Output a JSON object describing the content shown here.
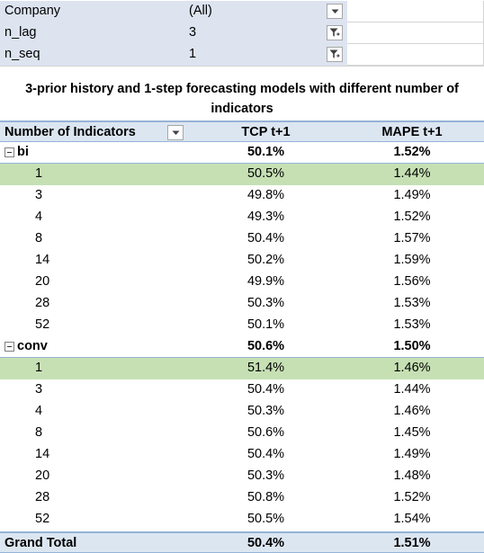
{
  "filters": [
    {
      "label": "Company",
      "value": "(All)",
      "icon": "dropdown-arrow-icon"
    },
    {
      "label": "n_lag",
      "value": "3",
      "icon": "filter-applied-icon"
    },
    {
      "label": "n_seq",
      "value": "1",
      "icon": "filter-applied-icon"
    }
  ],
  "title": "3-prior history and 1-step forecasting models with different number of indicators",
  "header": {
    "col0": "Number of Indicators",
    "col1": "TCP t+1",
    "col2": "MAPE t+1"
  },
  "groups": [
    {
      "name": "bi",
      "tcp": "50.1%",
      "mape": "1.52%",
      "rows": [
        {
          "n": "1",
          "tcp": "50.5%",
          "mape": "1.44%",
          "highlight": true
        },
        {
          "n": "3",
          "tcp": "49.8%",
          "mape": "1.49%",
          "highlight": false
        },
        {
          "n": "4",
          "tcp": "49.3%",
          "mape": "1.52%",
          "highlight": false
        },
        {
          "n": "8",
          "tcp": "50.4%",
          "mape": "1.57%",
          "highlight": false
        },
        {
          "n": "14",
          "tcp": "50.2%",
          "mape": "1.59%",
          "highlight": false
        },
        {
          "n": "20",
          "tcp": "49.9%",
          "mape": "1.56%",
          "highlight": false
        },
        {
          "n": "28",
          "tcp": "50.3%",
          "mape": "1.53%",
          "highlight": false
        },
        {
          "n": "52",
          "tcp": "50.1%",
          "mape": "1.53%",
          "highlight": false
        }
      ]
    },
    {
      "name": "conv",
      "tcp": "50.6%",
      "mape": "1.50%",
      "rows": [
        {
          "n": "1",
          "tcp": "51.4%",
          "mape": "1.46%",
          "highlight": true
        },
        {
          "n": "3",
          "tcp": "50.4%",
          "mape": "1.44%",
          "highlight": false
        },
        {
          "n": "4",
          "tcp": "50.3%",
          "mape": "1.46%",
          "highlight": false
        },
        {
          "n": "8",
          "tcp": "50.6%",
          "mape": "1.45%",
          "highlight": false
        },
        {
          "n": "14",
          "tcp": "50.4%",
          "mape": "1.49%",
          "highlight": false
        },
        {
          "n": "20",
          "tcp": "50.3%",
          "mape": "1.48%",
          "highlight": false
        },
        {
          "n": "28",
          "tcp": "50.8%",
          "mape": "1.52%",
          "highlight": false
        },
        {
          "n": "52",
          "tcp": "50.5%",
          "mape": "1.54%",
          "highlight": false
        }
      ]
    }
  ],
  "total": {
    "label": "Grand Total",
    "tcp": "50.4%",
    "mape": "1.51%"
  },
  "colors": {
    "filter_band": "#dde4f0",
    "header_band": "#dce6f1",
    "highlight": "#c6e0b4",
    "border": "#95b3d7"
  }
}
